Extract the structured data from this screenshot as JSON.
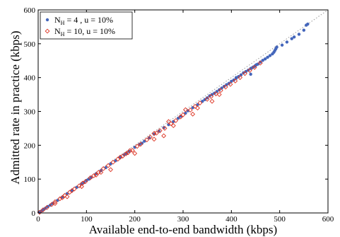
{
  "chart_data": {
    "type": "scatter",
    "xlabel": "Available end-to-end bandwidth (kbps)",
    "ylabel": "Admitted rate in practice (kbps)",
    "xlim": [
      0,
      600
    ],
    "ylim": [
      0,
      600
    ],
    "xticks": [
      "0",
      "100",
      "200",
      "300",
      "400",
      "500",
      "600"
    ],
    "yticks": [
      "0",
      "100",
      "200",
      "300",
      "400",
      "500",
      "600"
    ],
    "grid": false,
    "reference_line": {
      "style": "dotted",
      "from": [
        0,
        0
      ],
      "to": [
        600,
        600
      ]
    },
    "legend": {
      "placement": "top-left"
    },
    "series": [
      {
        "legend_main": "N",
        "legend_sub": "H",
        "legend_rest": " =  4 , u = 10%",
        "marker": "filled-circle",
        "color": "#4466bb",
        "points": [
          [
            2,
            2
          ],
          [
            5,
            4
          ],
          [
            8,
            7
          ],
          [
            12,
            11
          ],
          [
            15,
            14
          ],
          [
            20,
            19
          ],
          [
            25,
            23
          ],
          [
            30,
            28
          ],
          [
            40,
            37
          ],
          [
            50,
            47
          ],
          [
            60,
            57
          ],
          [
            70,
            66
          ],
          [
            80,
            76
          ],
          [
            90,
            86
          ],
          [
            95,
            90
          ],
          [
            100,
            96
          ],
          [
            105,
            100
          ],
          [
            110,
            105
          ],
          [
            120,
            116
          ],
          [
            130,
            125
          ],
          [
            140,
            134
          ],
          [
            150,
            145
          ],
          [
            160,
            154
          ],
          [
            170,
            164
          ],
          [
            178,
            172
          ],
          [
            183,
            176
          ],
          [
            188,
            182
          ],
          [
            200,
            194
          ],
          [
            210,
            203
          ],
          [
            215,
            206
          ],
          [
            220,
            212
          ],
          [
            230,
            222
          ],
          [
            240,
            233
          ],
          [
            250,
            242
          ],
          [
            260,
            252
          ],
          [
            270,
            261
          ],
          [
            280,
            270
          ],
          [
            290,
            280
          ],
          [
            295,
            286
          ],
          [
            305,
            295
          ],
          [
            310,
            302
          ],
          [
            320,
            311
          ],
          [
            330,
            320
          ],
          [
            340,
            330
          ],
          [
            345,
            335
          ],
          [
            350,
            340
          ],
          [
            355,
            346
          ],
          [
            360,
            350
          ],
          [
            365,
            354
          ],
          [
            370,
            359
          ],
          [
            375,
            364
          ],
          [
            380,
            369
          ],
          [
            385,
            374
          ],
          [
            390,
            379
          ],
          [
            395,
            383
          ],
          [
            400,
            389
          ],
          [
            405,
            393
          ],
          [
            410,
            398
          ],
          [
            415,
            403
          ],
          [
            420,
            408
          ],
          [
            425,
            414
          ],
          [
            430,
            418
          ],
          [
            435,
            422
          ],
          [
            440,
            427
          ],
          [
            442,
            428
          ],
          [
            445,
            431
          ],
          [
            448,
            433
          ],
          [
            450,
            436
          ],
          [
            452,
            438
          ],
          [
            455,
            440
          ],
          [
            460,
            446
          ],
          [
            465,
            451
          ],
          [
            470,
            455
          ],
          [
            475,
            460
          ],
          [
            480,
            465
          ],
          [
            485,
            470
          ],
          [
            488,
            475
          ],
          [
            490,
            480
          ],
          [
            492,
            485
          ],
          [
            494,
            490
          ],
          [
            505,
            496
          ],
          [
            515,
            505
          ],
          [
            525,
            515
          ],
          [
            530,
            520
          ],
          [
            540,
            528
          ],
          [
            550,
            540
          ],
          [
            555,
            555
          ],
          [
            558,
            558
          ],
          [
            440,
            410
          ],
          [
            410,
            400
          ]
        ]
      },
      {
        "legend_main": "N",
        "legend_sub": "H",
        "legend_rest": " = 10, u = 10%",
        "marker": "open-diamond",
        "color": "#dd3322",
        "points": [
          [
            3,
            2
          ],
          [
            10,
            9
          ],
          [
            18,
            16
          ],
          [
            28,
            25
          ],
          [
            35,
            33
          ],
          [
            45,
            42
          ],
          [
            55,
            52
          ],
          [
            65,
            61
          ],
          [
            75,
            71
          ],
          [
            85,
            80
          ],
          [
            92,
            88
          ],
          [
            98,
            93
          ],
          [
            108,
            104
          ],
          [
            115,
            110
          ],
          [
            125,
            120
          ],
          [
            135,
            131
          ],
          [
            145,
            140
          ],
          [
            155,
            150
          ],
          [
            165,
            159
          ],
          [
            175,
            168
          ],
          [
            182,
            175
          ],
          [
            186,
            178
          ],
          [
            190,
            184
          ],
          [
            195,
            185
          ],
          [
            205,
            197
          ],
          [
            212,
            203
          ],
          [
            225,
            216
          ],
          [
            232,
            224
          ],
          [
            245,
            236
          ],
          [
            252,
            243
          ],
          [
            262,
            250
          ],
          [
            275,
            264
          ],
          [
            285,
            273
          ],
          [
            295,
            284
          ],
          [
            300,
            290
          ],
          [
            315,
            304
          ],
          [
            325,
            315
          ],
          [
            335,
            325
          ],
          [
            350,
            336
          ],
          [
            358,
            344
          ],
          [
            368,
            352
          ],
          [
            378,
            362
          ],
          [
            388,
            372
          ],
          [
            398,
            380
          ],
          [
            408,
            390
          ],
          [
            418,
            400
          ],
          [
            428,
            412
          ],
          [
            438,
            421
          ],
          [
            448,
            430
          ],
          [
            460,
            443
          ],
          [
            375,
            350
          ],
          [
            320,
            292
          ],
          [
            280,
            258
          ],
          [
            240,
            218
          ],
          [
            200,
            176
          ],
          [
            150,
            128
          ],
          [
            130,
            120
          ],
          [
            90,
            78
          ],
          [
            60,
            48
          ],
          [
            35,
            28
          ],
          [
            260,
            228
          ],
          [
            330,
            310
          ],
          [
            360,
            330
          ],
          [
            305,
            305
          ],
          [
            270,
            270
          ],
          [
            240,
            235
          ],
          [
            170,
            165
          ],
          [
            120,
            112
          ],
          [
            70,
            66
          ],
          [
            50,
            45
          ]
        ]
      }
    ]
  }
}
